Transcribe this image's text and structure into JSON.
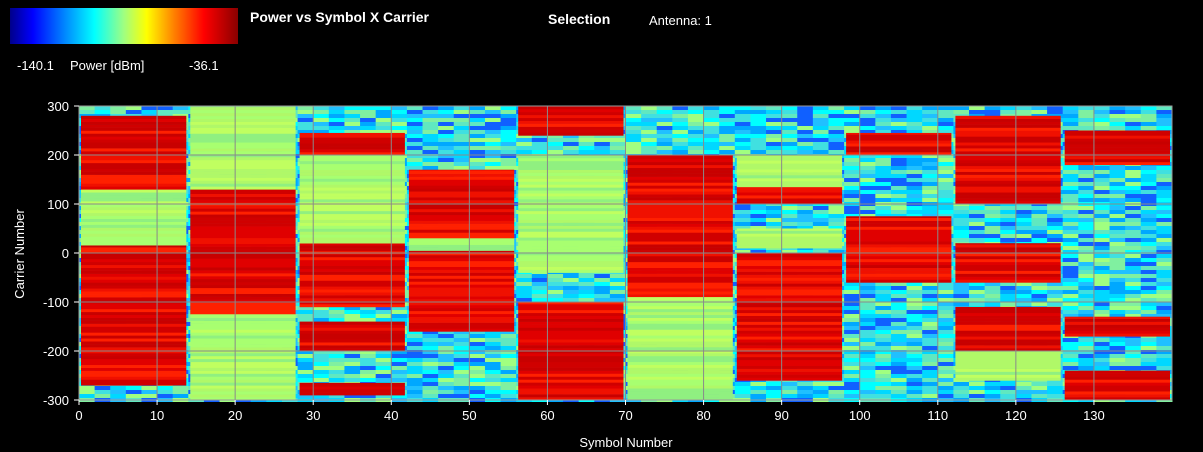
{
  "header": {
    "title": "Power vs Symbol X Carrier",
    "selection_label": "Selection",
    "selection_value": "Antenna: 1"
  },
  "colorbar": {
    "min_label": "-140.1",
    "unit_label": "Power [dBm]",
    "max_label": "-36.1",
    "colors": [
      "#00008a",
      "#0000ff",
      "#0090ff",
      "#00ffff",
      "#a0ff80",
      "#ffff00",
      "#ff8000",
      "#ff0000",
      "#8a0000"
    ]
  },
  "chart_data": {
    "type": "heatmap",
    "title": "Power vs Symbol X Carrier",
    "xlabel": "Symbol Number",
    "ylabel": "Carrier Number",
    "xlim": [
      0,
      140
    ],
    "ylim": [
      -300,
      300
    ],
    "x_ticks": [
      0,
      10,
      20,
      30,
      40,
      50,
      60,
      70,
      80,
      90,
      100,
      110,
      120,
      130
    ],
    "y_ticks": [
      300,
      200,
      100,
      0,
      -100,
      -200,
      -300
    ],
    "zlim": [
      -140.1,
      -36.1
    ],
    "z_unit": "dBm",
    "grid": true,
    "level_note": "approximate power level per region: 0 = noise (cyan/blue), 1 = mid (light green), 2 = high (red)",
    "regions": [
      {
        "x": [
          0,
          14
        ],
        "y": [
          -270,
          16
        ],
        "level": 2
      },
      {
        "x": [
          0,
          14
        ],
        "y": [
          16,
          130
        ],
        "level": 1
      },
      {
        "x": [
          0,
          14
        ],
        "y": [
          130,
          280
        ],
        "level": 2
      },
      {
        "x": [
          14,
          28
        ],
        "y": [
          -125,
          130
        ],
        "level": 2
      },
      {
        "x": [
          14,
          28
        ],
        "y": [
          -300,
          -125
        ],
        "level": 1
      },
      {
        "x": [
          14,
          28
        ],
        "y": [
          130,
          300
        ],
        "level": 1
      },
      {
        "x": [
          28,
          42
        ],
        "y": [
          200,
          245
        ],
        "level": 2
      },
      {
        "x": [
          28,
          42
        ],
        "y": [
          -110,
          20
        ],
        "level": 2
      },
      {
        "x": [
          28,
          42
        ],
        "y": [
          -200,
          -140
        ],
        "level": 2
      },
      {
        "x": [
          28,
          42
        ],
        "y": [
          -290,
          -265
        ],
        "level": 2
      },
      {
        "x": [
          28,
          42
        ],
        "y": [
          20,
          200
        ],
        "level": 1
      },
      {
        "x": [
          42,
          56
        ],
        "y": [
          30,
          170
        ],
        "level": 2
      },
      {
        "x": [
          42,
          56
        ],
        "y": [
          -160,
          5
        ],
        "level": 2
      },
      {
        "x": [
          42,
          56
        ],
        "y": [
          5,
          30
        ],
        "level": 1
      },
      {
        "x": [
          56,
          70
        ],
        "y": [
          240,
          300
        ],
        "level": 2
      },
      {
        "x": [
          56,
          70
        ],
        "y": [
          -40,
          200
        ],
        "level": 1
      },
      {
        "x": [
          56,
          70
        ],
        "y": [
          -200,
          -100
        ],
        "level": 2
      },
      {
        "x": [
          56,
          70
        ],
        "y": [
          -300,
          -200
        ],
        "level": 2
      },
      {
        "x": [
          70,
          84
        ],
        "y": [
          -90,
          200
        ],
        "level": 2
      },
      {
        "x": [
          70,
          84
        ],
        "y": [
          -300,
          -90
        ],
        "level": 1
      },
      {
        "x": [
          84,
          98
        ],
        "y": [
          -260,
          0
        ],
        "level": 2
      },
      {
        "x": [
          84,
          98
        ],
        "y": [
          10,
          50
        ],
        "level": 1
      },
      {
        "x": [
          84,
          98
        ],
        "y": [
          100,
          135
        ],
        "level": 2
      },
      {
        "x": [
          84,
          98
        ],
        "y": [
          135,
          200
        ],
        "level": 1
      },
      {
        "x": [
          98,
          112
        ],
        "y": [
          -60,
          75
        ],
        "level": 2
      },
      {
        "x": [
          98,
          112
        ],
        "y": [
          200,
          245
        ],
        "level": 2
      },
      {
        "x": [
          112,
          126
        ],
        "y": [
          100,
          280
        ],
        "level": 2
      },
      {
        "x": [
          112,
          126
        ],
        "y": [
          -60,
          20
        ],
        "level": 2
      },
      {
        "x": [
          112,
          126
        ],
        "y": [
          -200,
          -110
        ],
        "level": 2
      },
      {
        "x": [
          112,
          126
        ],
        "y": [
          -260,
          -200
        ],
        "level": 1
      },
      {
        "x": [
          126,
          140
        ],
        "y": [
          -300,
          -240
        ],
        "level": 2
      },
      {
        "x": [
          126,
          140
        ],
        "y": [
          -170,
          -130
        ],
        "level": 2
      },
      {
        "x": [
          126,
          140
        ],
        "y": [
          180,
          250
        ],
        "level": 2
      }
    ]
  }
}
